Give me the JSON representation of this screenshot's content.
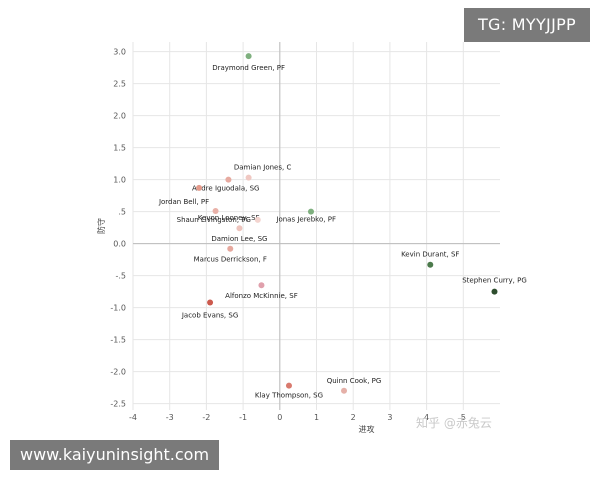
{
  "watermarks": {
    "top": "TG: MYYJJPP",
    "bottom": "www.kaiyuninsight.com",
    "credit": "知乎 @赤兔云"
  },
  "chart_data": {
    "type": "scatter",
    "title": "",
    "xlabel": "进攻",
    "ylabel": "防守",
    "xlim": [
      -4,
      6
    ],
    "ylim": [
      -2.6,
      3.15
    ],
    "x_ticks": [
      -4,
      -3,
      -2,
      -1,
      0,
      1,
      2,
      3,
      4,
      5
    ],
    "x_tick_labels": [
      "-4",
      "-3",
      "-2",
      "-1",
      "0",
      "1",
      "2",
      "3",
      "4",
      "5"
    ],
    "y_ticks": [
      3.0,
      2.5,
      2.0,
      1.5,
      1.0,
      0.5,
      0.0,
      -0.5,
      -1.0,
      -1.5,
      -2.0,
      -2.5
    ],
    "y_tick_labels": [
      "3.0",
      "2.5",
      "2.0",
      "1.5",
      "1.0",
      ".5",
      "0.0",
      "-.5",
      "-1.0",
      "-1.5",
      "-2.0",
      "-2.5"
    ],
    "grid": true,
    "points": [
      {
        "label": "Draymond Green, PF",
        "x": -0.85,
        "y": 2.93,
        "color": "#7fb07f"
      },
      {
        "label": "Damian Jones, C",
        "x": -0.85,
        "y": 1.03,
        "color": "#f0c8c2"
      },
      {
        "label": "Andre Iguodala, SG",
        "x": -1.4,
        "y": 1.0,
        "color": "#e7aaa0"
      },
      {
        "label": "Jordan Bell, PF",
        "x": -2.2,
        "y": 0.87,
        "color": "#e49a8b"
      },
      {
        "label": "Kevon Looney, SF",
        "x": -1.75,
        "y": 0.51,
        "color": "#e9b1a8"
      },
      {
        "label": "Jonas Jerebko, PF",
        "x": 0.85,
        "y": 0.5,
        "color": "#7fb07f"
      },
      {
        "label": "Shaun Livingston, PG",
        "x": -0.6,
        "y": 0.37,
        "color": "#f3d4cf"
      },
      {
        "label": "Damion Lee, SG",
        "x": -1.1,
        "y": 0.24,
        "color": "#eec4bd"
      },
      {
        "label": "Marcus Derrickson, F",
        "x": -1.35,
        "y": -0.08,
        "color": "#e6a89e"
      },
      {
        "label": "Kevin Durant, SF",
        "x": 4.1,
        "y": -0.33,
        "color": "#4c7a4c"
      },
      {
        "label": "Stephen Curry, PG",
        "x": 5.85,
        "y": -0.75,
        "color": "#2e4d2e"
      },
      {
        "label": "Alfonzo McKinnie, SF",
        "x": -0.5,
        "y": -0.65,
        "color": "#e0a0ac"
      },
      {
        "label": "Jacob Evans, SG",
        "x": -1.9,
        "y": -0.92,
        "color": "#cc5a4e"
      },
      {
        "label": "Klay Thompson, SG",
        "x": 0.25,
        "y": -2.22,
        "color": "#d97a6e"
      },
      {
        "label": "Quinn Cook, PG",
        "x": 1.75,
        "y": -2.3,
        "color": "#e5b0a8"
      }
    ]
  }
}
